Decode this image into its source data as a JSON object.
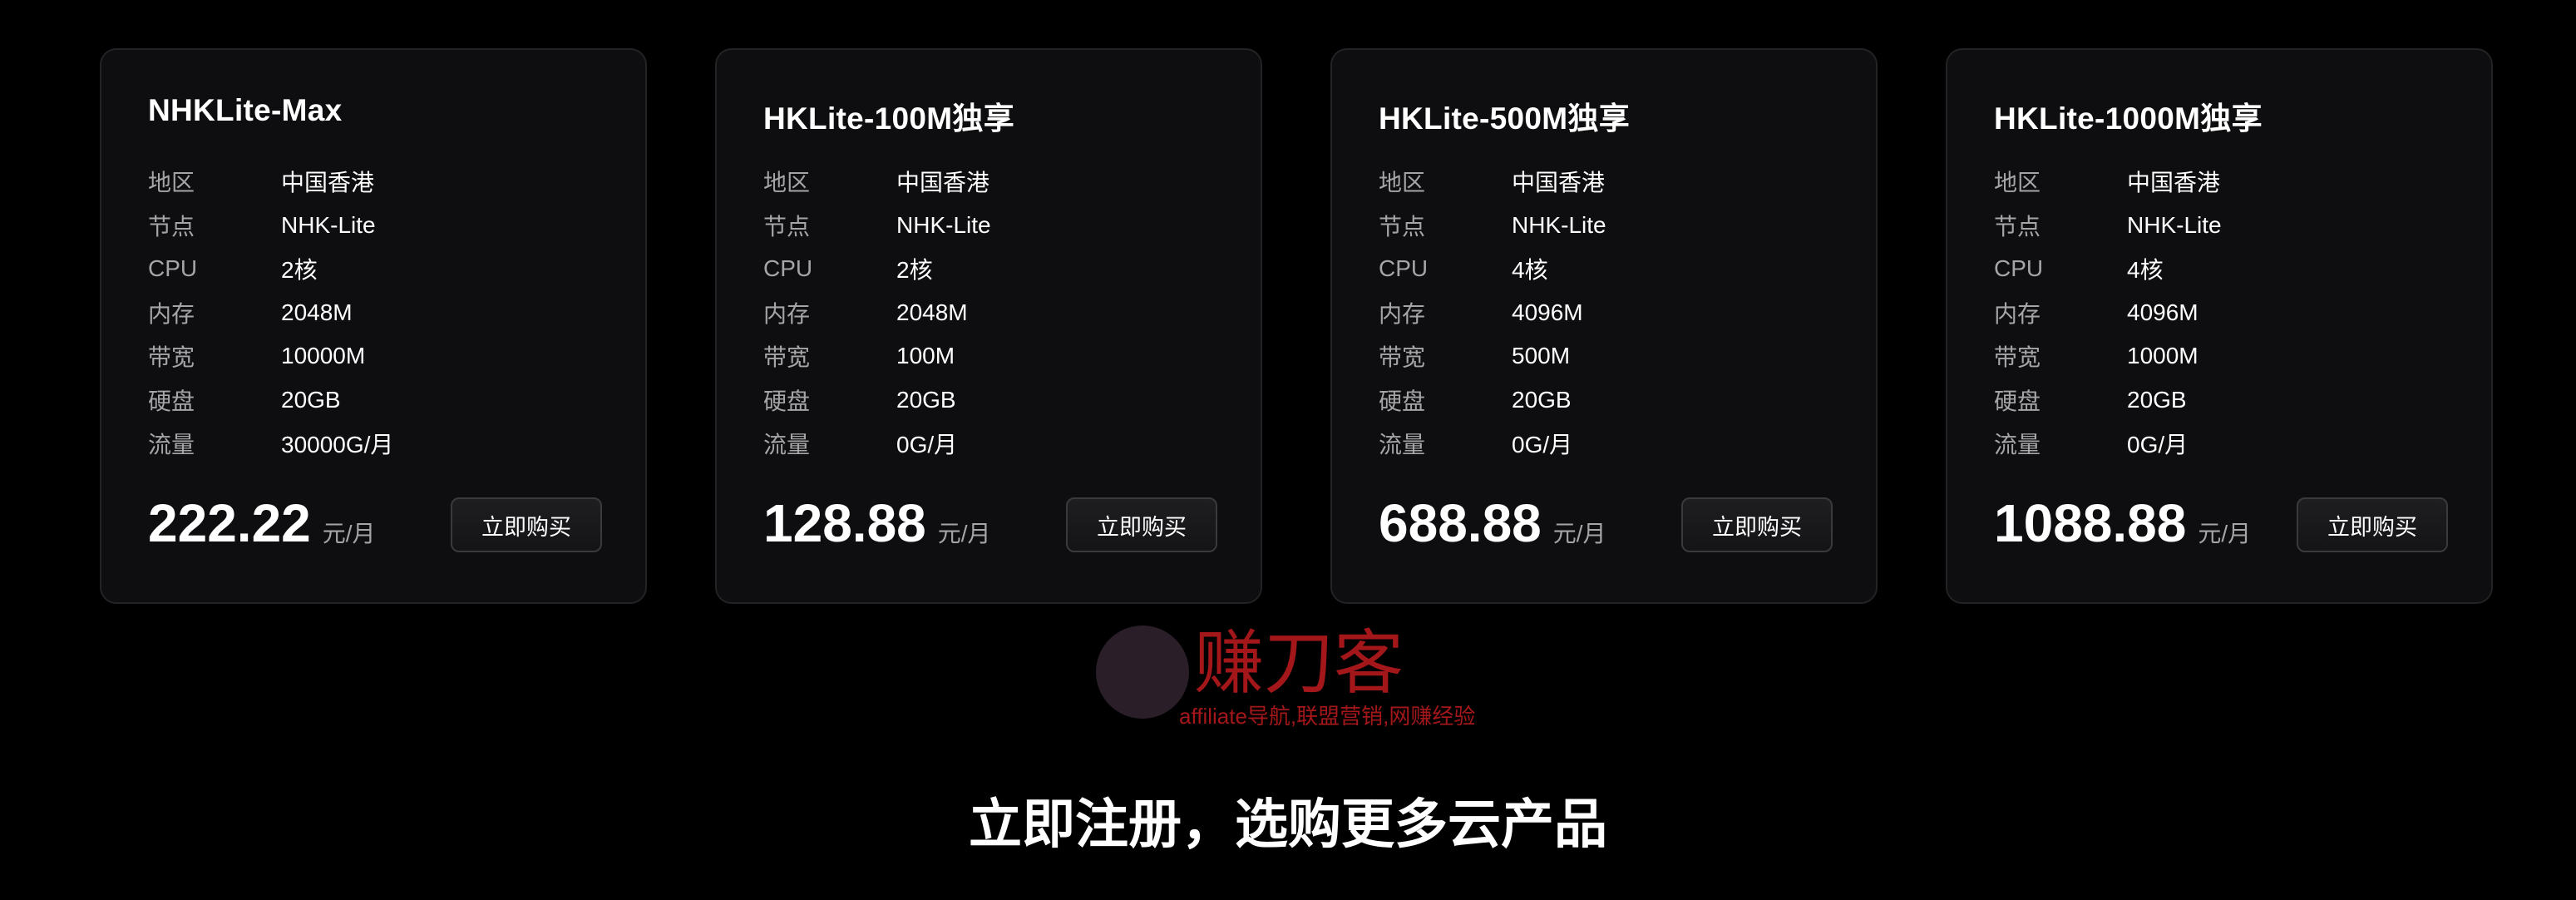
{
  "plans": [
    {
      "name": "NHKLite-Max",
      "specs": [
        {
          "label": "地区",
          "value": "中国香港"
        },
        {
          "label": "节点",
          "value": "NHK-Lite"
        },
        {
          "label": "CPU",
          "value": "2核"
        },
        {
          "label": "内存",
          "value": "2048M"
        },
        {
          "label": "带宽",
          "value": "10000M"
        },
        {
          "label": "硬盘",
          "value": "20GB"
        },
        {
          "label": "流量",
          "value": "30000G/月"
        }
      ],
      "price": "222.22",
      "unit": "元/月",
      "buy": "立即购买"
    },
    {
      "name": "HKLite-100M独享",
      "specs": [
        {
          "label": "地区",
          "value": "中国香港"
        },
        {
          "label": "节点",
          "value": "NHK-Lite"
        },
        {
          "label": "CPU",
          "value": "2核"
        },
        {
          "label": "内存",
          "value": "2048M"
        },
        {
          "label": "带宽",
          "value": "100M"
        },
        {
          "label": "硬盘",
          "value": "20GB"
        },
        {
          "label": "流量",
          "value": "0G/月"
        }
      ],
      "price": "128.88",
      "unit": "元/月",
      "buy": "立即购买"
    },
    {
      "name": "HKLite-500M独享",
      "specs": [
        {
          "label": "地区",
          "value": "中国香港"
        },
        {
          "label": "节点",
          "value": "NHK-Lite"
        },
        {
          "label": "CPU",
          "value": "4核"
        },
        {
          "label": "内存",
          "value": "4096M"
        },
        {
          "label": "带宽",
          "value": "500M"
        },
        {
          "label": "硬盘",
          "value": "20GB"
        },
        {
          "label": "流量",
          "value": "0G/月"
        }
      ],
      "price": "688.88",
      "unit": "元/月",
      "buy": "立即购买"
    },
    {
      "name": "HKLite-1000M独享",
      "specs": [
        {
          "label": "地区",
          "value": "中国香港"
        },
        {
          "label": "节点",
          "value": "NHK-Lite"
        },
        {
          "label": "CPU",
          "value": "4核"
        },
        {
          "label": "内存",
          "value": "4096M"
        },
        {
          "label": "带宽",
          "value": "1000M"
        },
        {
          "label": "硬盘",
          "value": "20GB"
        },
        {
          "label": "流量",
          "value": "0G/月"
        }
      ],
      "price": "1088.88",
      "unit": "元/月",
      "buy": "立即购买"
    }
  ],
  "cta": "立即注册，选购更多云产品",
  "watermark": {
    "title": "赚刀客",
    "subtitle": "affiliate导航,联盟营销,网赚经验"
  }
}
